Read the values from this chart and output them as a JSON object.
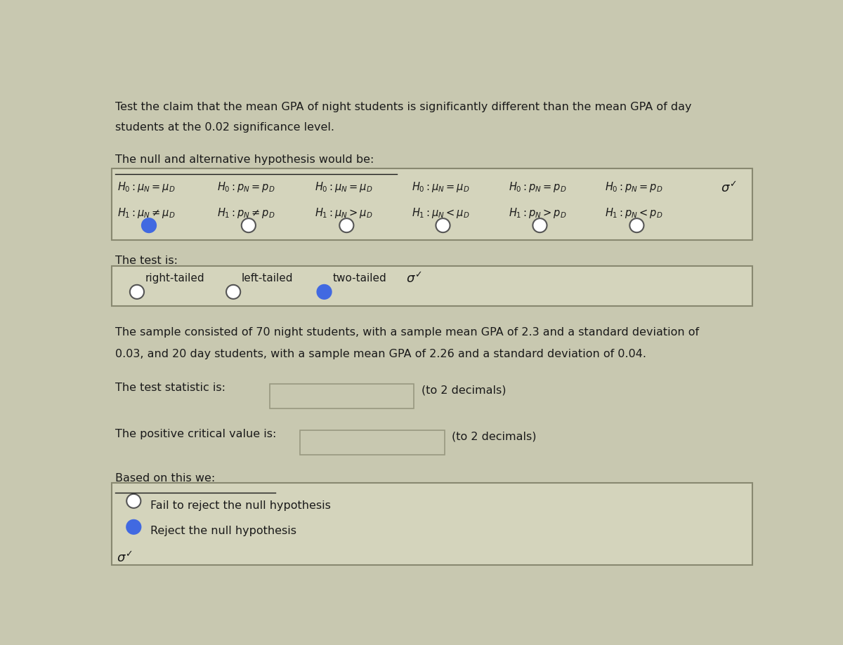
{
  "bg_color": "#c8c8b0",
  "text_color": "#1a1a1a",
  "box_bg": "#d4d4bc",
  "box_border": "#888870",
  "title_lines": [
    "Test the claim that the mean GPA of night students is significantly different than the mean GPA of day",
    "students at the 0.02 significance level."
  ],
  "hyp_label": "The null and alternative hypothesis would be:",
  "radio_selected_hyp": 0,
  "test_label": "The test is:",
  "test_options": [
    "right-tailed",
    "left-tailed",
    "two-tailed"
  ],
  "radio_selected_test": 2,
  "sample_text_lines": [
    "The sample consisted of 70 night students, with a sample mean GPA of 2.3 and a standard deviation of",
    "0.03, and 20 day students, with a sample mean GPA of 2.26 and a standard deviation of 0.04."
  ],
  "stat_label": "The test statistic is:",
  "stat_hint": "(to 2 decimals)",
  "critical_label": "The positive critical value is:",
  "critical_hint": "(to 2 decimals)",
  "based_label": "Based on this we:",
  "conclusion_options": [
    "Fail to reject the null hypothesis",
    "Reject the null hypothesis"
  ],
  "radio_selected_conclusion": 1,
  "radio_filled_color": "#4169e1",
  "input_box_color": "#c8c8b0",
  "input_box_border": "#999980"
}
